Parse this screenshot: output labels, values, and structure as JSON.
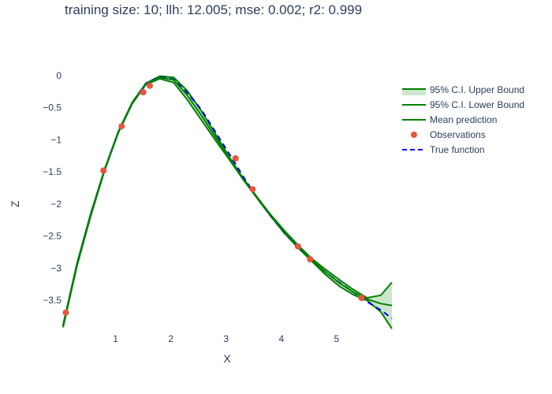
{
  "chart_data": {
    "type": "line",
    "title": "training size: 10; llh: 12.005; mse: 0.002; r2: 0.999",
    "xlabel": "X",
    "ylabel": "Z",
    "xlim": [
      0.05,
      6.0
    ],
    "ylim": [
      -4.0,
      0.12
    ],
    "x_ticks": [
      1,
      2,
      3,
      4,
      5
    ],
    "y_ticks": [
      0,
      -0.5,
      -1,
      -1.5,
      -2,
      -2.5,
      -3,
      -3.5
    ],
    "x_tick_labels": [
      "1",
      "2",
      "3",
      "4",
      "5"
    ],
    "y_tick_labels": [
      "0",
      "−0.5",
      "−1",
      "−1.5",
      "−2",
      "−2.5",
      "−3",
      "−3.5"
    ],
    "grid": false,
    "legend_position": "top-right",
    "legend": [
      {
        "label": "95% C.I. Upper Bound",
        "kind": "band",
        "color": "#008000",
        "fill": "rgba(0,128,0,0.2)"
      },
      {
        "label": "95% C.I. Lower Bound",
        "kind": "line",
        "color": "#008000"
      },
      {
        "label": "Mean prediction",
        "kind": "line",
        "color": "#008000"
      },
      {
        "label": "Observations",
        "kind": "marker",
        "color": "#e9543f"
      },
      {
        "label": "True function",
        "kind": "dash",
        "color": "#0000ee"
      }
    ],
    "series": [
      {
        "name": "True function",
        "color": "#0000ee",
        "dash": true,
        "x": [
          0.05,
          0.3,
          0.55,
          0.8,
          1.05,
          1.3,
          1.55,
          1.8,
          2.05,
          2.3,
          2.55,
          2.8,
          3.05,
          3.3,
          3.55,
          3.8,
          4.05,
          4.3,
          4.55,
          4.8,
          5.05,
          5.3,
          5.55,
          5.8,
          6.0
        ],
        "y": [
          -3.9,
          -2.95,
          -2.17,
          -1.47,
          -0.88,
          -0.43,
          -0.12,
          -0.02,
          -0.06,
          -0.27,
          -0.53,
          -0.87,
          -1.21,
          -1.56,
          -1.89,
          -2.18,
          -2.44,
          -2.67,
          -2.87,
          -3.06,
          -3.22,
          -3.37,
          -3.52,
          -3.65,
          -3.78
        ]
      },
      {
        "name": "Mean prediction",
        "color": "#008000",
        "x": [
          0.05,
          0.3,
          0.55,
          0.8,
          1.05,
          1.3,
          1.55,
          1.8,
          2.05,
          2.3,
          2.55,
          2.8,
          3.05,
          3.3,
          3.55,
          3.8,
          4.05,
          4.3,
          4.55,
          4.8,
          5.05,
          5.3,
          5.55,
          5.8,
          6.0
        ],
        "y": [
          -3.9,
          -2.95,
          -2.17,
          -1.47,
          -0.88,
          -0.43,
          -0.13,
          -0.03,
          -0.07,
          -0.31,
          -0.62,
          -0.95,
          -1.28,
          -1.6,
          -1.89,
          -2.17,
          -2.43,
          -2.66,
          -2.87,
          -3.06,
          -3.23,
          -3.37,
          -3.48,
          -3.55,
          -3.58
        ]
      },
      {
        "name": "95% C.I. Upper Bound",
        "color": "#008000",
        "x": [
          0.05,
          0.3,
          0.55,
          0.8,
          1.05,
          1.3,
          1.55,
          1.8,
          2.05,
          2.3,
          2.55,
          2.8,
          3.05,
          3.3,
          3.55,
          3.8,
          4.05,
          4.3,
          4.55,
          4.8,
          5.05,
          5.3,
          5.55,
          5.8,
          6.0
        ],
        "y": [
          -3.88,
          -2.93,
          -2.15,
          -1.46,
          -0.87,
          -0.42,
          -0.12,
          -0.01,
          -0.03,
          -0.24,
          -0.55,
          -0.9,
          -1.26,
          -1.59,
          -1.88,
          -2.16,
          -2.41,
          -2.64,
          -2.85,
          -3.02,
          -3.18,
          -3.33,
          -3.46,
          -3.42,
          -3.22
        ]
      },
      {
        "name": "95% C.I. Lower Bound",
        "color": "#008000",
        "x": [
          0.05,
          0.3,
          0.55,
          0.8,
          1.05,
          1.3,
          1.55,
          1.8,
          2.05,
          2.3,
          2.55,
          2.8,
          3.05,
          3.3,
          3.55,
          3.8,
          4.05,
          4.3,
          4.55,
          4.8,
          5.05,
          5.3,
          5.55,
          5.8,
          6.0
        ],
        "y": [
          -3.92,
          -2.97,
          -2.19,
          -1.48,
          -0.89,
          -0.44,
          -0.14,
          -0.05,
          -0.11,
          -0.38,
          -0.69,
          -1.0,
          -1.3,
          -1.61,
          -1.9,
          -2.18,
          -2.45,
          -2.68,
          -2.89,
          -3.1,
          -3.28,
          -3.41,
          -3.5,
          -3.68,
          -3.94
        ]
      }
    ],
    "observations": {
      "name": "Observations",
      "color": "#e9543f",
      "x": [
        0.1,
        0.78,
        1.11,
        1.5,
        1.62,
        3.17,
        3.48,
        4.3,
        4.52,
        5.45
      ],
      "y": [
        -3.69,
        -1.48,
        -0.79,
        -0.26,
        -0.16,
        -1.29,
        -1.77,
        -2.66,
        -2.86,
        -3.46
      ]
    }
  }
}
